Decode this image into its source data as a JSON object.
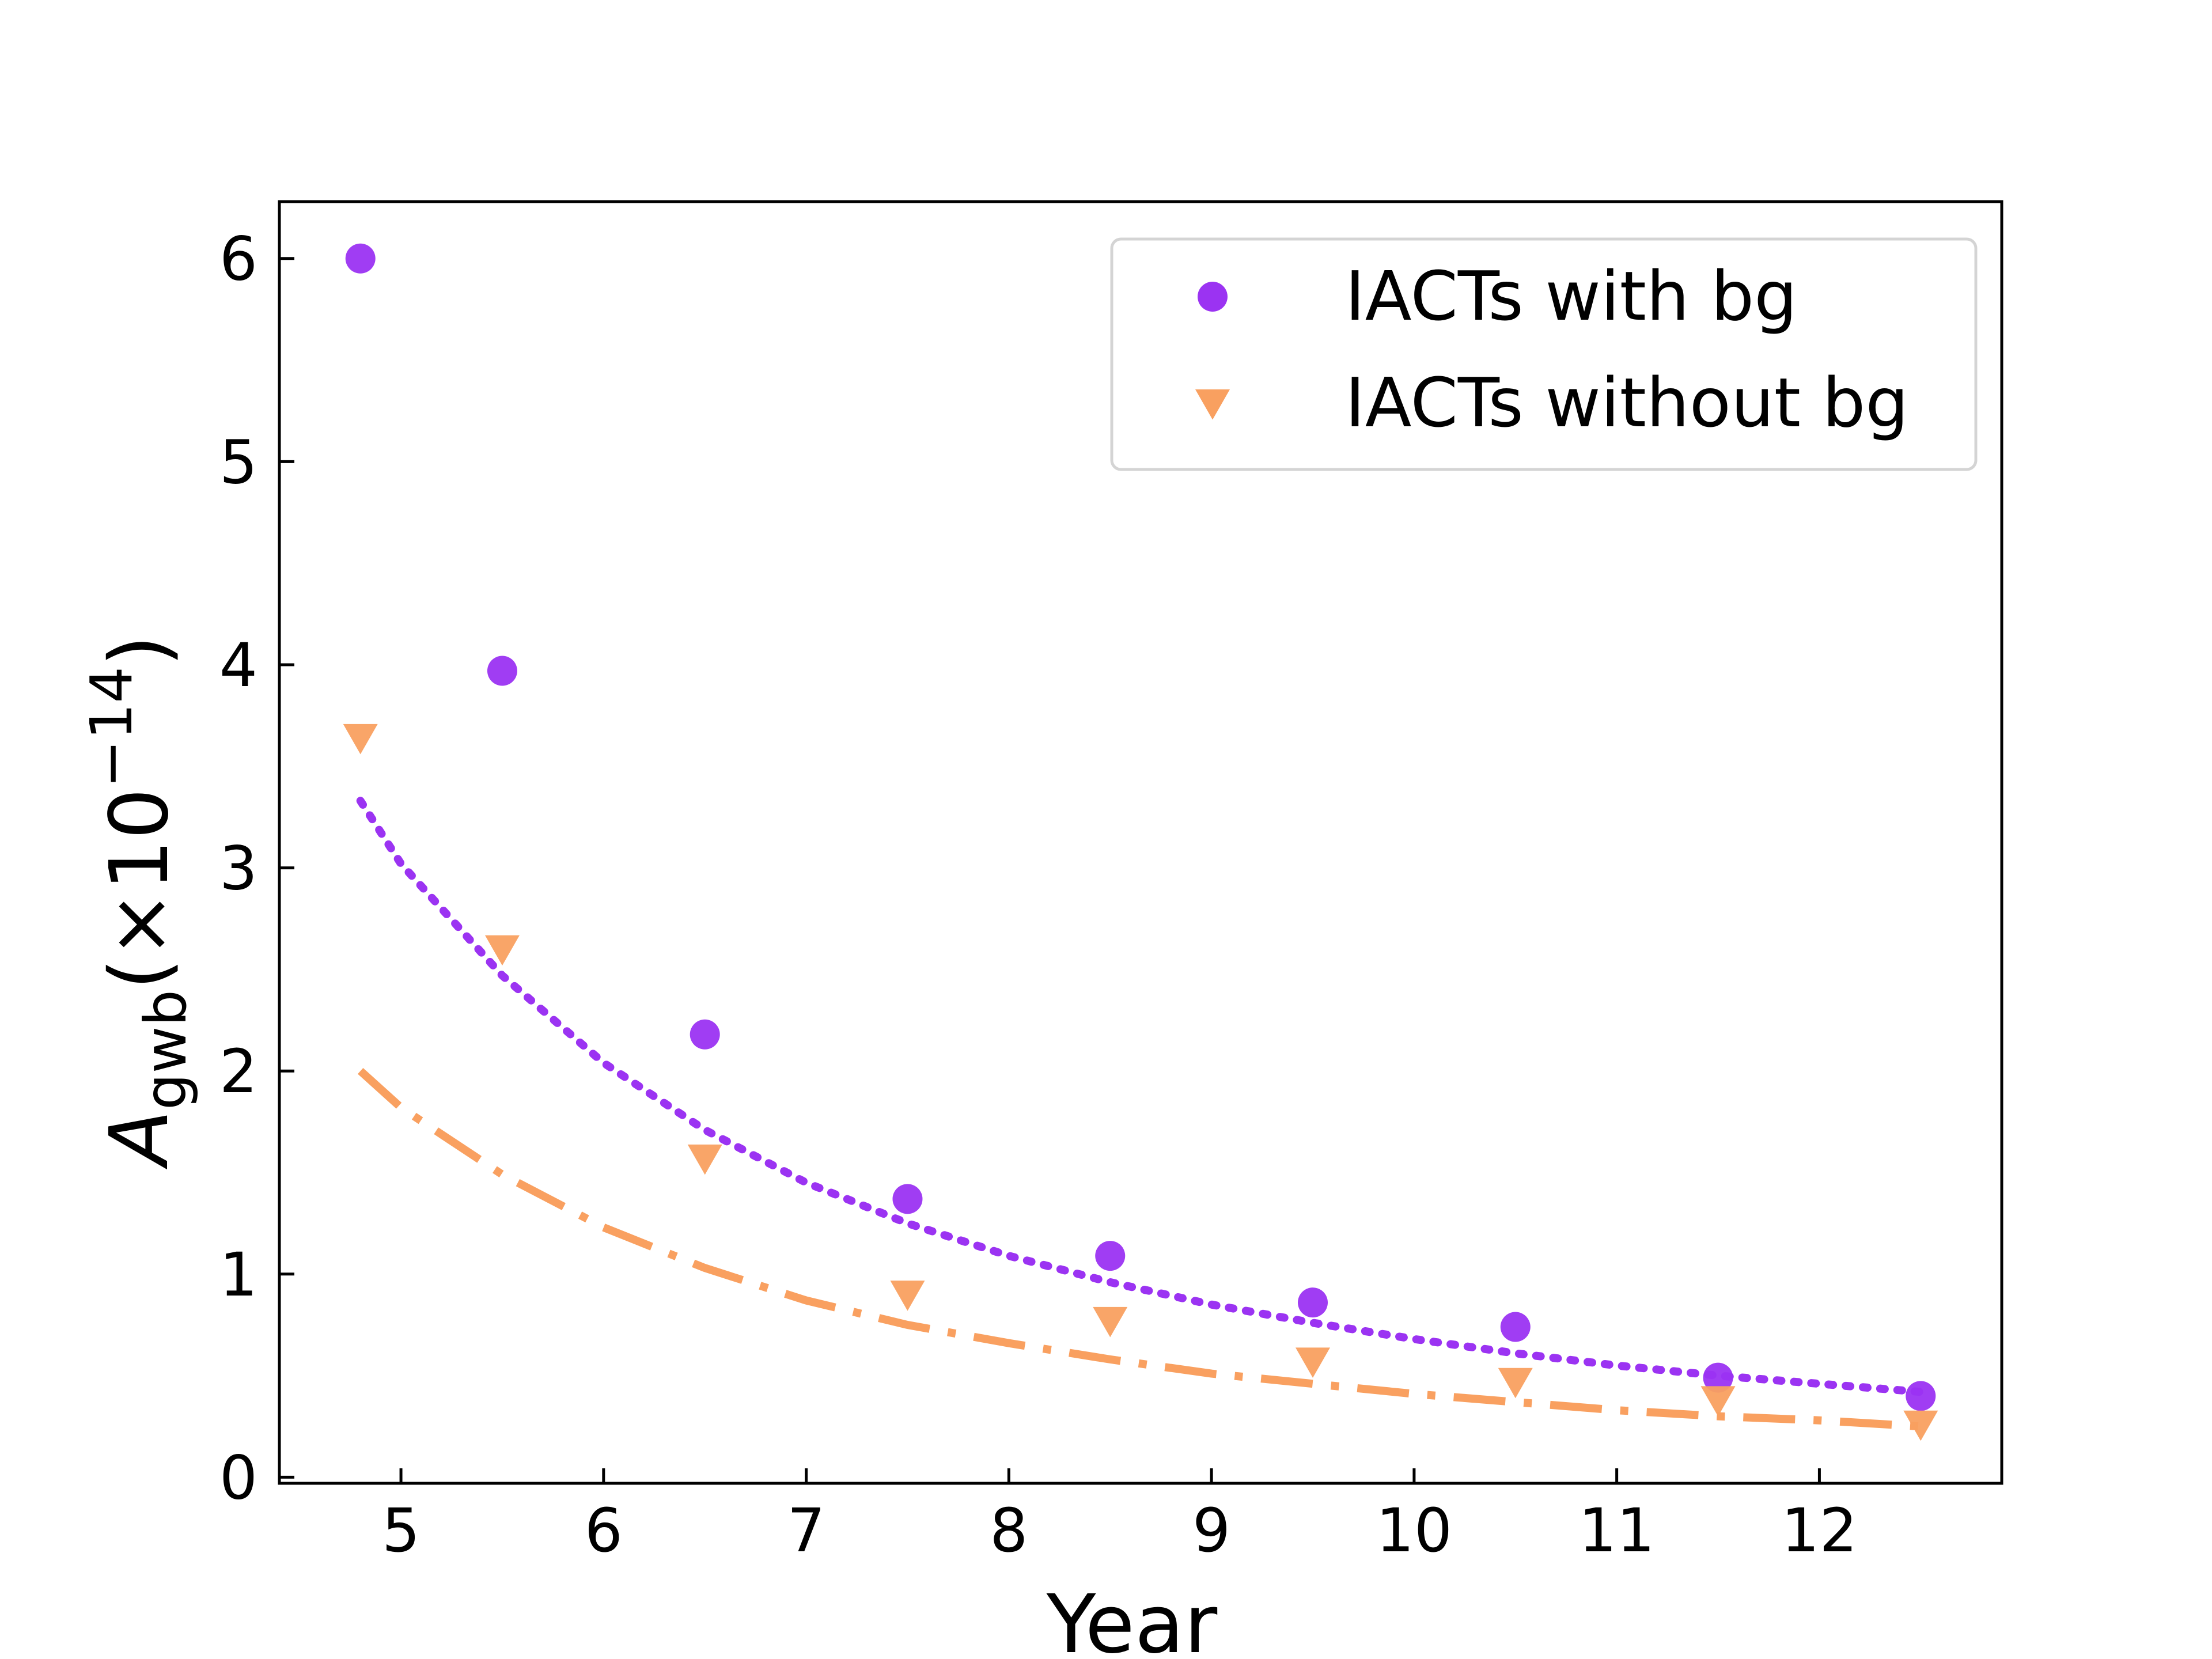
{
  "chart_data": {
    "type": "scatter",
    "title": "",
    "xlabel": "Year",
    "ylabel": {
      "base": "A",
      "subscript": "gwb",
      "rest": "(×10",
      "superscript": "−14",
      "close": ")"
    },
    "xlim": [
      4.4,
      12.9
    ],
    "ylim": [
      -0.03,
      6.28
    ],
    "xticks": [
      "5",
      "6",
      "7",
      "8",
      "9",
      "10",
      "11",
      "12"
    ],
    "yticks": [
      "0",
      "1",
      "2",
      "3",
      "4",
      "5",
      "6"
    ],
    "legend_position": "top-right",
    "series": [
      {
        "name": "IACTs with bg",
        "marker": "circle",
        "color": "#9b33f2",
        "x": [
          4.8,
          5.5,
          6.5,
          7.5,
          8.5,
          9.5,
          10.5,
          11.5,
          12.5
        ],
        "y": [
          6.0,
          3.97,
          2.18,
          1.37,
          1.09,
          0.86,
          0.74,
          0.49,
          0.4
        ]
      },
      {
        "name": "IACTs without bg",
        "marker": "triangle-down",
        "color": "#f9a060",
        "x": [
          4.8,
          5.5,
          6.5,
          7.5,
          8.5,
          9.5,
          10.5,
          11.5,
          12.5
        ],
        "y": [
          3.64,
          2.6,
          1.57,
          0.9,
          0.77,
          0.57,
          0.47,
          0.38,
          0.26
        ]
      }
    ],
    "fits": [
      {
        "name": "fit-with-bg",
        "style": "dotted",
        "color": "#9b33f2",
        "x": [
          4.8,
          5.0,
          5.5,
          6.0,
          6.5,
          7.0,
          7.5,
          8.0,
          8.5,
          9.0,
          9.5,
          10.0,
          10.5,
          11.0,
          11.5,
          12.0,
          12.5
        ],
        "y": [
          3.33,
          3.02,
          2.47,
          2.04,
          1.71,
          1.45,
          1.25,
          1.09,
          0.96,
          0.85,
          0.76,
          0.68,
          0.61,
          0.55,
          0.5,
          0.46,
          0.42
        ]
      },
      {
        "name": "fit-without-bg",
        "style": "dashdot",
        "color": "#f9a060",
        "x": [
          4.8,
          5.0,
          5.5,
          6.0,
          6.5,
          7.0,
          7.5,
          8.0,
          8.5,
          9.0,
          9.5,
          10.0,
          10.5,
          11.0,
          11.5,
          12.0,
          12.5
        ],
        "y": [
          2.0,
          1.82,
          1.49,
          1.23,
          1.03,
          0.87,
          0.75,
          0.66,
          0.58,
          0.51,
          0.46,
          0.41,
          0.37,
          0.33,
          0.3,
          0.28,
          0.25
        ]
      }
    ]
  }
}
